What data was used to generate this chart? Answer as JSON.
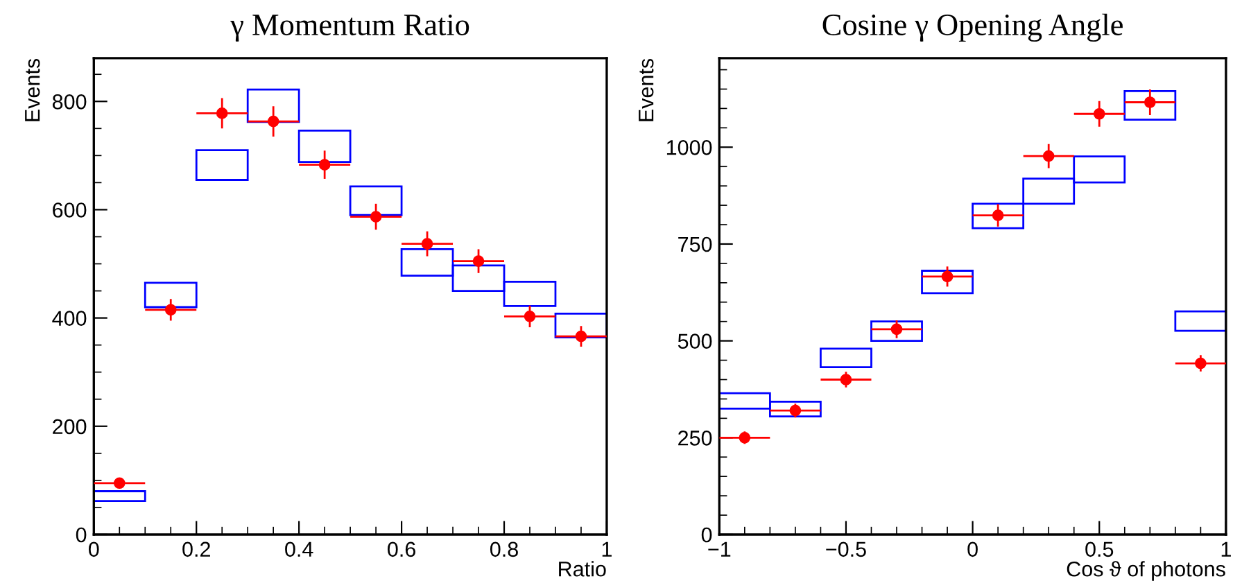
{
  "chart_data": [
    {
      "type": "bar",
      "title": "γ Momentum Ratio",
      "xlabel": "Ratio",
      "ylabel": "Events",
      "xlim": [
        0,
        1
      ],
      "ylim": [
        0,
        880
      ],
      "xticks": [
        0,
        0.2,
        0.4,
        0.6,
        0.8,
        1
      ],
      "yticks": [
        0,
        200,
        400,
        600,
        800
      ],
      "grid": false,
      "legend": false,
      "series": [
        {
          "type": "bar",
          "color": "#0000ff",
          "x": [
            0.05,
            0.15,
            0.25,
            0.35,
            0.45,
            0.55,
            0.65,
            0.75,
            0.85,
            0.95
          ],
          "base": [
            62,
            420,
            655,
            762,
            688,
            590,
            478,
            450,
            422,
            364
          ],
          "values": [
            18,
            45,
            55,
            60,
            58,
            53,
            49,
            47,
            45,
            44
          ]
        },
        {
          "type": "scatter",
          "color": "#ff0000",
          "marker": "circle",
          "x": [
            0.05,
            0.15,
            0.25,
            0.35,
            0.45,
            0.55,
            0.65,
            0.75,
            0.85,
            0.95
          ],
          "values": [
            95,
            415,
            778,
            763,
            683,
            587,
            537,
            505,
            403,
            366
          ],
          "errors": [
            10,
            20,
            28,
            28,
            26,
            24,
            23,
            22,
            20,
            19
          ],
          "xerrors": [
            0.05,
            0.05,
            0.05,
            0.05,
            0.05,
            0.05,
            0.05,
            0.05,
            0.05,
            0.05
          ]
        }
      ]
    },
    {
      "type": "bar",
      "title": "Cosine γ Opening Angle",
      "xlabel": "Cos ϑ of photons",
      "ylabel": "Events",
      "xlim": [
        -1,
        1
      ],
      "ylim": [
        0,
        1230
      ],
      "xticks": [
        {
          "value": -1,
          "label": "−1"
        },
        {
          "value": -0.5,
          "label": "−0.5"
        },
        0,
        0.5,
        1
      ],
      "yticks": [
        0,
        250,
        500,
        750,
        1000
      ],
      "grid": false,
      "legend": false,
      "series": [
        {
          "type": "bar",
          "color": "#0000ff",
          "x": [
            -0.9,
            -0.7,
            -0.5,
            -0.3,
            -0.1,
            0.1,
            0.3,
            0.5,
            0.7,
            0.9
          ],
          "base": [
            325,
            305,
            432,
            500,
            623,
            791,
            854,
            909,
            1071,
            526
          ],
          "values": [
            40,
            38,
            48,
            50,
            58,
            63,
            65,
            67,
            74,
            50
          ]
        },
        {
          "type": "scatter",
          "color": "#ff0000",
          "marker": "circle",
          "x": [
            -0.9,
            -0.7,
            -0.5,
            -0.3,
            -0.1,
            0.1,
            0.3,
            0.5,
            0.7,
            0.9
          ],
          "values": [
            250,
            320,
            400,
            530,
            666,
            824,
            977,
            1086,
            1116,
            442
          ],
          "errors": [
            16,
            18,
            20,
            23,
            26,
            29,
            31,
            33,
            33,
            21
          ],
          "xerrors": [
            0.1,
            0.1,
            0.1,
            0.1,
            0.1,
            0.1,
            0.1,
            0.1,
            0.1,
            0.1
          ]
        }
      ]
    }
  ]
}
